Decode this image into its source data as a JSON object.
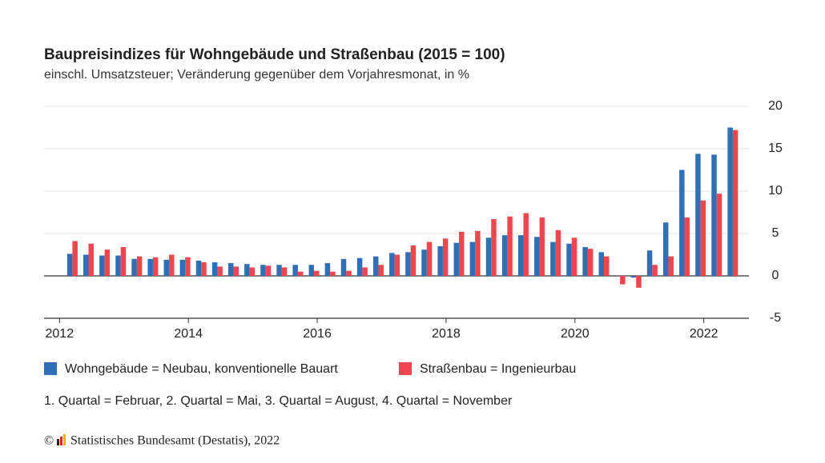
{
  "chart_data": {
    "type": "bar",
    "title": "Baupreisindizes für Wohngebäude und Straßenbau (2015 = 100)",
    "subtitle": "einschl. Umsatzsteuer; Veränderung gegenüber dem Vorjahresmonat, in %",
    "note": "1. Quartal = Februar, 2. Quartal = Mai, 3. Quartal = August, 4. Quartal = November",
    "copyright": "©",
    "source": "Statistisches Bundesamt (Destatis), 2022",
    "x": [
      2012.2,
      2012.45,
      2012.7,
      2012.95,
      2013.2,
      2013.45,
      2013.7,
      2013.95,
      2014.2,
      2014.45,
      2014.7,
      2014.95,
      2015.2,
      2015.45,
      2015.7,
      2015.95,
      2016.2,
      2016.45,
      2016.7,
      2016.95,
      2017.2,
      2017.45,
      2017.7,
      2017.95,
      2018.2,
      2018.45,
      2018.7,
      2018.95,
      2019.2,
      2019.45,
      2019.7,
      2019.95,
      2020.2,
      2020.45,
      2020.7,
      2020.95,
      2021.2,
      2021.45,
      2021.7,
      2021.95,
      2022.2,
      2022.45
    ],
    "series": [
      {
        "name": "Wohngebäude = Neubau, konventionelle Bauart",
        "color": "#2f6fb7",
        "values": [
          2.6,
          2.5,
          2.4,
          2.4,
          2.0,
          2.0,
          1.9,
          1.9,
          1.8,
          1.6,
          1.5,
          1.4,
          1.3,
          1.3,
          1.3,
          1.3,
          1.5,
          2.0,
          2.1,
          2.3,
          2.7,
          2.8,
          3.1,
          3.5,
          3.9,
          4.0,
          4.5,
          4.8,
          4.8,
          4.6,
          4.0,
          3.8,
          3.4,
          2.8,
          0.0,
          -0.2,
          3.0,
          6.3,
          12.5,
          14.4,
          14.3,
          17.5
        ]
      },
      {
        "name": "Straßenbau = Ingenieurbau",
        "color": "#f0454f",
        "values": [
          4.1,
          3.8,
          3.1,
          3.4,
          2.3,
          2.2,
          2.5,
          2.2,
          1.6,
          1.1,
          1.1,
          1.0,
          1.2,
          1.0,
          0.5,
          0.6,
          0.5,
          0.6,
          1.0,
          1.3,
          2.5,
          3.6,
          4.0,
          4.4,
          5.2,
          5.3,
          6.7,
          7.0,
          7.4,
          6.9,
          5.4,
          4.5,
          3.2,
          2.3,
          -1.0,
          -1.4,
          1.3,
          2.3,
          6.9,
          8.9,
          9.7,
          17.2
        ]
      }
    ],
    "xlim": [
      2011.76,
      2022.7
    ],
    "xticks": [
      2012,
      2014,
      2016,
      2018,
      2020,
      2022
    ],
    "ylim": [
      -5,
      20
    ],
    "yticks": [
      -5,
      0,
      5,
      10,
      15,
      20
    ],
    "grid": true
  }
}
